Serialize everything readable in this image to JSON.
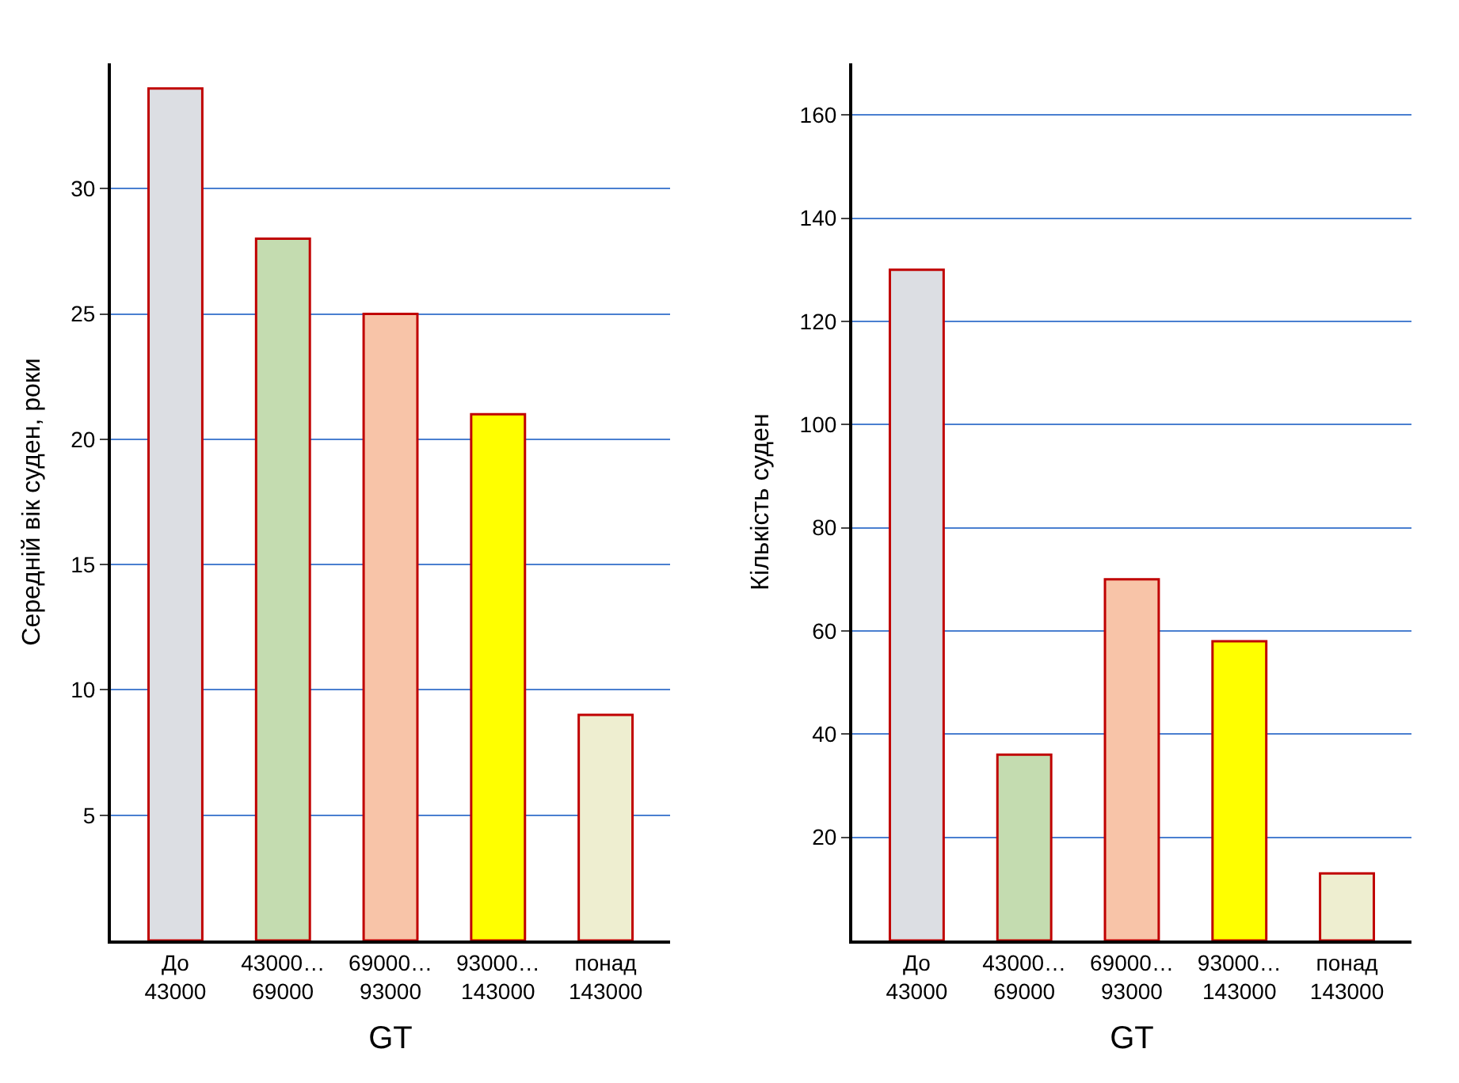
{
  "chart_data": [
    {
      "type": "bar",
      "ylabel": "Середній вік суден, роки",
      "xlabel": "GT",
      "categories": [
        "До\n43000",
        "43000…\n69000",
        "69000…\n93000",
        "93000…\n143000",
        "понад\n143000"
      ],
      "values": [
        34,
        28,
        25,
        21,
        9
      ],
      "colors": [
        "#dcdee3",
        "#c4dcb0",
        "#f8c4a8",
        "#ffff00",
        "#eeeed0"
      ],
      "ylim": [
        0,
        35
      ],
      "yticks": [
        5,
        10,
        15,
        20,
        25,
        30
      ],
      "grid": "y"
    },
    {
      "type": "bar",
      "ylabel": "Кількість суден",
      "xlabel": "GT",
      "categories": [
        "До\n43000",
        "43000…\n69000",
        "69000…\n93000",
        "93000…\n143000",
        "понад\n143000"
      ],
      "values": [
        130,
        36,
        70,
        58,
        13
      ],
      "colors": [
        "#dcdee3",
        "#c4dcb0",
        "#f8c4a8",
        "#ffff00",
        "#eeeed0"
      ],
      "ylim": [
        0,
        170
      ],
      "yticks": [
        20,
        40,
        60,
        80,
        100,
        120,
        140,
        160
      ],
      "grid": "y"
    }
  ]
}
